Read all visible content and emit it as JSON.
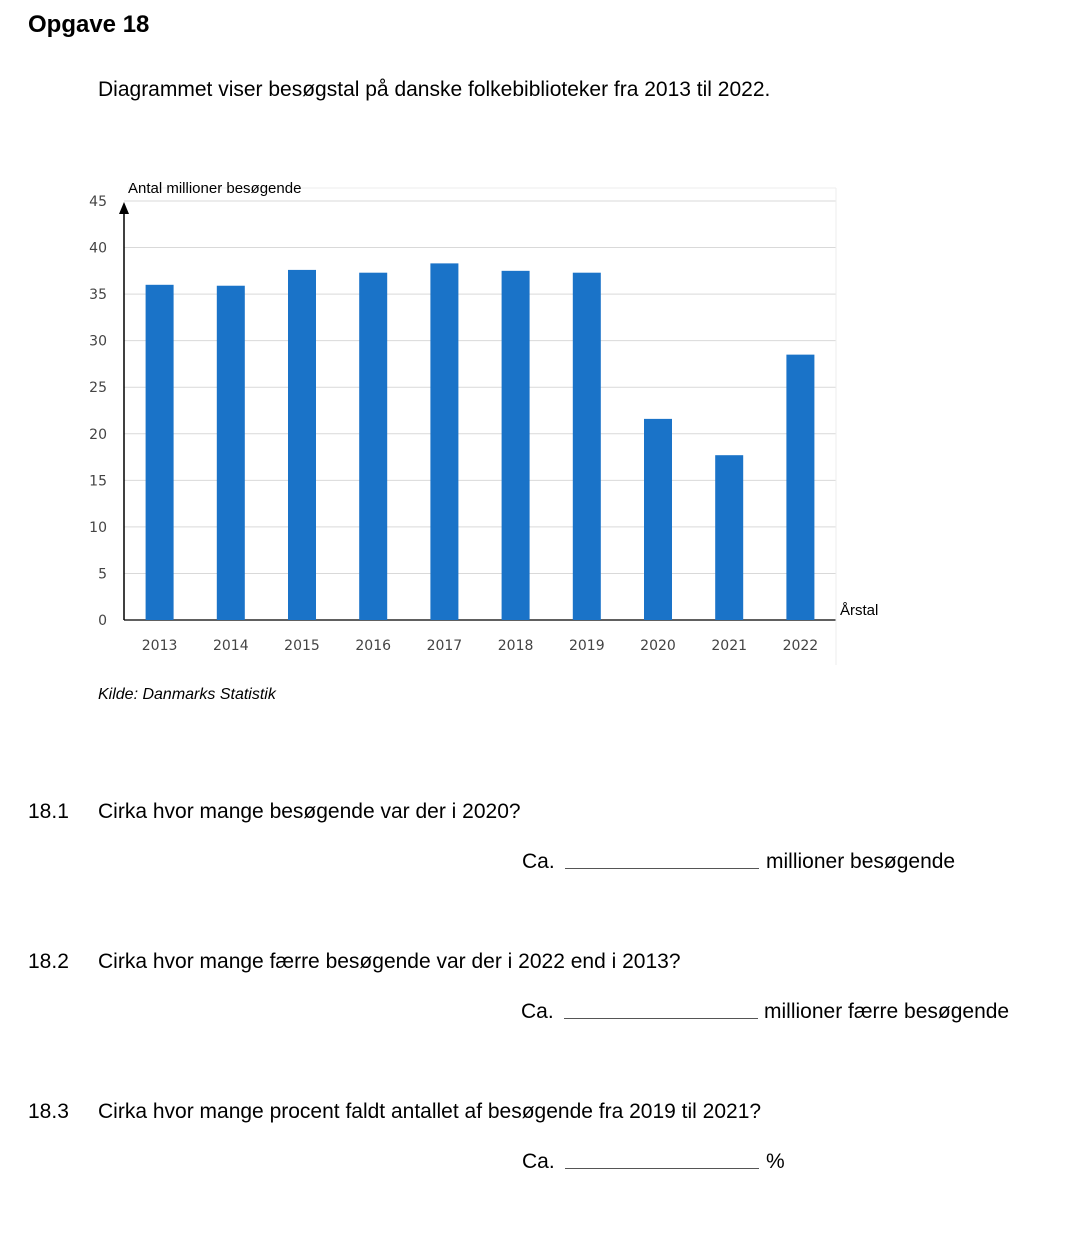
{
  "title": "Opgave 18",
  "intro": "Diagrammet viser besøgstal på danske folkebiblioteker fra 2013 til 2022.",
  "source": "Kilde: Danmarks Statistik",
  "chart_data": {
    "type": "bar",
    "categories": [
      "2013",
      "2014",
      "2015",
      "2016",
      "2017",
      "2018",
      "2019",
      "2020",
      "2021",
      "2022"
    ],
    "values": [
      36.0,
      35.9,
      37.6,
      37.3,
      38.3,
      37.5,
      37.3,
      21.6,
      17.7,
      28.5
    ],
    "ylabel": "Antal millioner besøgende",
    "xlabel": "Årstal",
    "ylim": [
      0,
      45
    ],
    "yticks": [
      "0",
      "5",
      "10",
      "15",
      "20",
      "25",
      "30",
      "35",
      "40",
      "45"
    ],
    "grid": true,
    "bar_color": "#1a73c8"
  },
  "questions": [
    {
      "number": "18.1",
      "text": "Cirka hvor mange besøgende var der i 2020?",
      "prefix": "Ca.",
      "suffix": "millioner besøgende"
    },
    {
      "number": "18.2",
      "text": "Cirka hvor mange færre besøgende var der i 2022 end i 2013?",
      "prefix": "Ca.",
      "suffix": "millioner færre besøgende"
    },
    {
      "number": "18.3",
      "text": "Cirka hvor mange procent faldt antallet af besøgende fra 2019 til 2021?",
      "prefix": "Ca.",
      "suffix": "%"
    }
  ]
}
